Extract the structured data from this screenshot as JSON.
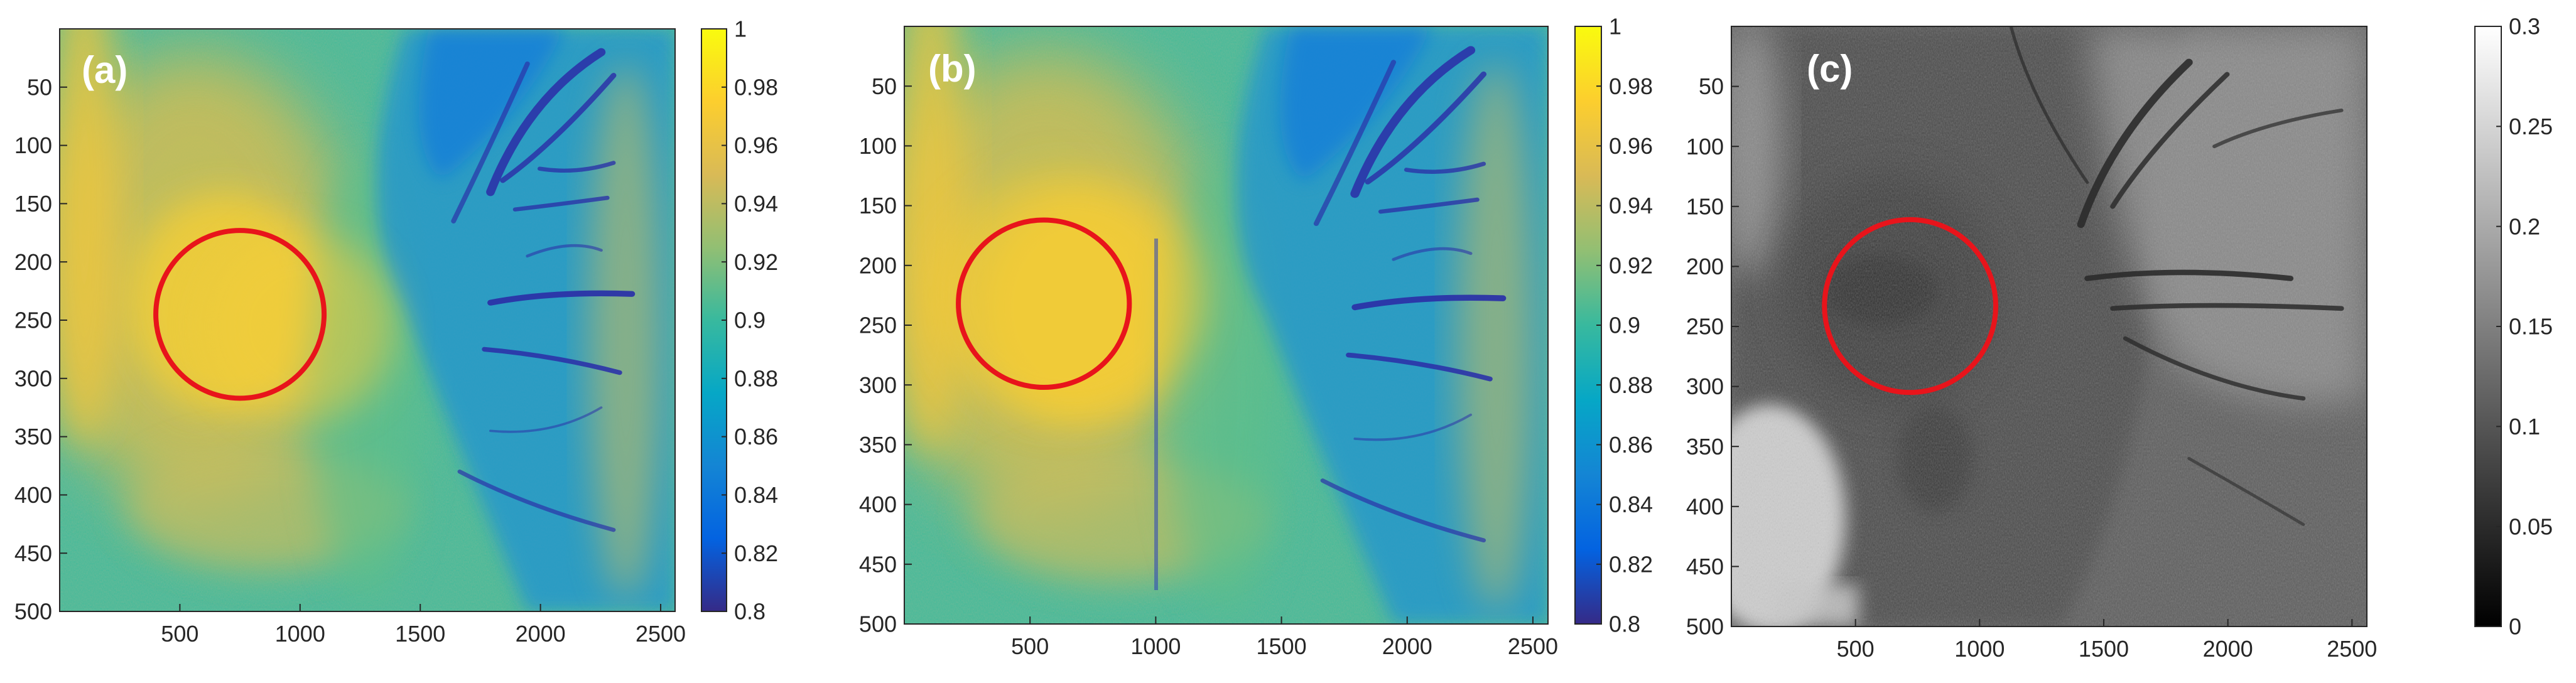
{
  "chart_data": [
    {
      "type": "heatmap",
      "panel_label": "(a)",
      "colormap": "parula",
      "x_ticks": [
        500,
        1000,
        1500,
        2000,
        2500
      ],
      "y_ticks": [
        50,
        100,
        150,
        200,
        250,
        300,
        350,
        400,
        450,
        500
      ],
      "xlim": [
        0,
        2560
      ],
      "ylim": [
        0,
        500
      ],
      "y_reversed": true,
      "colorbar": {
        "range": [
          0.8,
          1
        ],
        "ticks": [
          "0.8",
          "0.82",
          "0.84",
          "0.86",
          "0.88",
          "0.9",
          "0.92",
          "0.94",
          "0.96",
          "0.98",
          "1"
        ]
      },
      "annotation": {
        "shape": "circle",
        "color": "#e8141b",
        "center": [
          750,
          245
        ],
        "radius_x": 350,
        "radius_y": 72
      }
    },
    {
      "type": "heatmap",
      "panel_label": "(b)",
      "colormap": "parula",
      "x_ticks": [
        500,
        1000,
        1500,
        2000,
        2500
      ],
      "y_ticks": [
        50,
        100,
        150,
        200,
        250,
        300,
        350,
        400,
        450,
        500
      ],
      "xlim": [
        0,
        2560
      ],
      "ylim": [
        0,
        500
      ],
      "y_reversed": true,
      "colorbar": {
        "range": [
          0.8,
          1
        ],
        "ticks": [
          "0.8",
          "0.82",
          "0.84",
          "0.86",
          "0.88",
          "0.9",
          "0.92",
          "0.94",
          "0.96",
          "0.98",
          "1"
        ]
      },
      "annotation": {
        "shape": "circle",
        "color": "#e8141b",
        "center": [
          555,
          232
        ],
        "radius_x": 340,
        "radius_y": 70
      }
    },
    {
      "type": "heatmap",
      "panel_label": "(c)",
      "colormap": "gray",
      "x_ticks": [
        500,
        1000,
        1500,
        2000,
        2500
      ],
      "y_ticks": [
        50,
        100,
        150,
        200,
        250,
        300,
        350,
        400,
        450,
        500
      ],
      "xlim": [
        0,
        2560
      ],
      "ylim": [
        0,
        500
      ],
      "y_reversed": true,
      "colorbar": {
        "range": [
          0,
          0.3
        ],
        "ticks": [
          "0",
          "0.05",
          "0.1",
          "0.15",
          "0.2",
          "0.25",
          "0.3"
        ]
      },
      "annotation": {
        "shape": "circle",
        "color": "#e8141b",
        "center": [
          720,
          233
        ],
        "radius_x": 345,
        "radius_y": 72
      }
    }
  ]
}
